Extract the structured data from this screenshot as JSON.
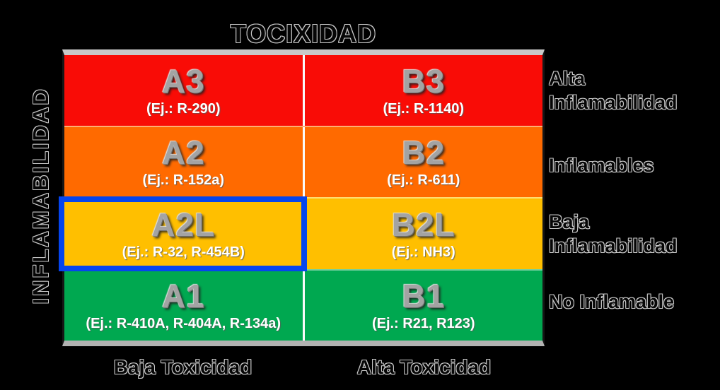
{
  "title": "TOCIXIDAD",
  "y_axis_label": "INFLAMABILIDAD",
  "x_axis": {
    "low_label": "Baja Toxicidad",
    "high_label": "Alta Toxicidad"
  },
  "matrix": {
    "rows": [
      {
        "bg": "#F90C06",
        "right_label_line1": "Alta",
        "right_label_line2": "Inflamabilidad",
        "cells": [
          {
            "code": "A3",
            "example": "(Ej.: R-290)"
          },
          {
            "code": "B3",
            "example": "(Ej.: R-1140)"
          }
        ]
      },
      {
        "bg": "#FF6A00",
        "right_label_line1": "Inflamables",
        "right_label_line2": "",
        "cells": [
          {
            "code": "A2",
            "example": "(Ej.: R-152a)"
          },
          {
            "code": "B2",
            "example": "(Ej.: R-611)"
          }
        ]
      },
      {
        "bg": "#FFBF00",
        "right_label_line1": "Baja",
        "right_label_line2": "Inflamabilidad",
        "cells": [
          {
            "code": "A2L",
            "example": "(Ej.: R-32, R-454B)"
          },
          {
            "code": "B2L",
            "example": "(Ej.: NH3)"
          }
        ]
      },
      {
        "bg": "#00A850",
        "right_label_line1": "No Inflamable",
        "right_label_line2": "",
        "cells": [
          {
            "code": "A1",
            "example": "(Ej.: R-410A, R-404A, R-134a)"
          },
          {
            "code": "B1",
            "example": "(Ej.: R21, R123)"
          }
        ]
      }
    ]
  },
  "highlight": {
    "cell": "A2L",
    "color": "#0645EE"
  },
  "colors": {
    "red": "#F90C06",
    "orange": "#FF6A00",
    "yellow": "#FFBF00",
    "green": "#00A850",
    "frame": "#C9C9C9",
    "column_divider": "#FAFAFA",
    "background": "#000000"
  }
}
